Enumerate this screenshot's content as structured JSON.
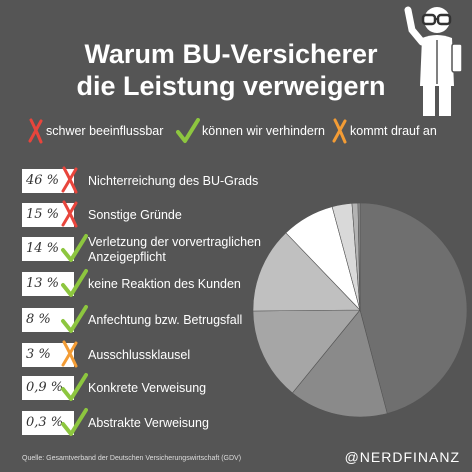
{
  "title": {
    "line1": "Warum BU-Versicherer",
    "line2": "die Leistung verweigern"
  },
  "legend": [
    {
      "label": "schwer beeinflussbar",
      "mark": "cross-red-icon",
      "color": "#e8453c"
    },
    {
      "label": "können wir verhindern",
      "mark": "check-green-icon",
      "color": "#8dc63f"
    },
    {
      "label": "kommt drauf an",
      "mark": "cross-orange-icon",
      "color": "#f39c35"
    }
  ],
  "rows": [
    {
      "pct": "46 %",
      "label": "Nichterreichung des BU-Grads",
      "mark": "cross-red-icon"
    },
    {
      "pct": "15 %",
      "label": "Sonstige Gründe",
      "mark": "cross-red-icon"
    },
    {
      "pct": "14 %",
      "label": "Verletzung der vorvertraglichen",
      "label2": "Anzeigepflicht",
      "mark": "check-green-icon"
    },
    {
      "pct": "13 %",
      "label": "keine Reaktion des Kunden",
      "mark": "check-green-icon"
    },
    {
      "pct": "8 %",
      "label": "Anfechtung bzw. Betrugsfall",
      "mark": "check-green-icon"
    },
    {
      "pct": "3 %",
      "label": "Ausschlussklausel",
      "mark": "cross-orange-icon"
    },
    {
      "pct": "0,9 %",
      "label": "Konkrete Verweisung",
      "mark": "check-green-icon"
    },
    {
      "pct": "0,3 %",
      "label": "Abstrakte Verweisung",
      "mark": "check-green-icon"
    }
  ],
  "chart_data": {
    "type": "pie",
    "categories": [
      "Nichterreichung des BU-Grads",
      "Sonstige Gründe",
      "Verletzung der vorvertraglichen Anzeigepflicht",
      "keine Reaktion des Kunden",
      "Anfechtung bzw. Betrugsfall",
      "Ausschlussklausel",
      "Konkrete Verweisung",
      "Abstrakte Verweisung"
    ],
    "values": [
      46,
      15,
      14,
      13,
      8,
      3,
      0.9,
      0.3
    ],
    "colors": [
      "#6f6f6f",
      "#8a8a8a",
      "#a6a6a6",
      "#c0c0c0",
      "#ffffff",
      "#d9d9d9",
      "#b3b3b3",
      "#999999"
    ]
  },
  "source": "Quelle: Gesamtverband der Deutschen Versicherungswirtschaft (GDV)",
  "brand": "@NERDFINANZ"
}
